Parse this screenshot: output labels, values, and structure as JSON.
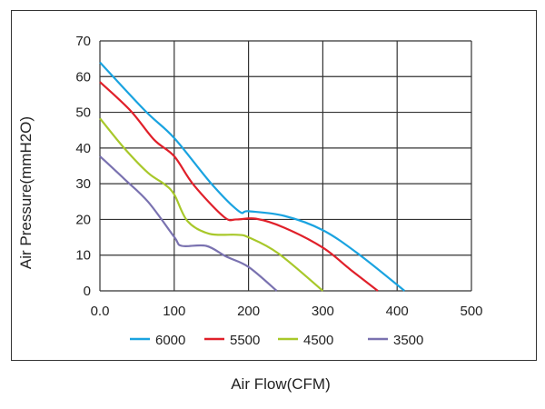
{
  "chart_data": {
    "type": "line",
    "title": "",
    "xlabel": "Air Flow(CFM)",
    "ylabel": "Air Pressure(mmH2O)",
    "xlim": [
      0,
      500
    ],
    "ylim": [
      0,
      70
    ],
    "xticks": [
      "0.0",
      "100",
      "200",
      "300",
      "400",
      "500"
    ],
    "yticks": [
      "0",
      "10",
      "20",
      "30",
      "40",
      "50",
      "60",
      "70"
    ],
    "grid": true,
    "legend_position": "bottom",
    "series": [
      {
        "name": "6000",
        "color": "#1aa3e0",
        "points": [
          [
            0,
            64
          ],
          [
            61,
            50.4
          ],
          [
            100,
            42.8
          ],
          [
            150,
            30
          ],
          [
            187,
            22.3
          ],
          [
            200,
            22.3
          ],
          [
            248,
            21
          ],
          [
            300,
            17
          ],
          [
            350,
            10
          ],
          [
            410,
            0
          ]
        ]
      },
      {
        "name": "5500",
        "color": "#e0202a",
        "points": [
          [
            0,
            58.5
          ],
          [
            41,
            50.5
          ],
          [
            73,
            42.3
          ],
          [
            100,
            37.7
          ],
          [
            126,
            29.7
          ],
          [
            167,
            20.7
          ],
          [
            184,
            20
          ],
          [
            210,
            20.2
          ],
          [
            248,
            17.7
          ],
          [
            300,
            12.1
          ],
          [
            338,
            5.8
          ],
          [
            374,
            0
          ]
        ]
      },
      {
        "name": "4500",
        "color": "#a8c82a",
        "points": [
          [
            0,
            48.3
          ],
          [
            33,
            39.9
          ],
          [
            65,
            33
          ],
          [
            86,
            30
          ],
          [
            100,
            27
          ],
          [
            118,
            19.5
          ],
          [
            147,
            16
          ],
          [
            184,
            15.7
          ],
          [
            200,
            15
          ],
          [
            240,
            10.5
          ],
          [
            300,
            0
          ]
        ]
      },
      {
        "name": "3500",
        "color": "#7a72b0",
        "points": [
          [
            0,
            37.7
          ],
          [
            33,
            31.3
          ],
          [
            65,
            24.9
          ],
          [
            100,
            15.1
          ],
          [
            110,
            12.6
          ],
          [
            143,
            12.6
          ],
          [
            170,
            9.6
          ],
          [
            200,
            6.7
          ],
          [
            238,
            0
          ]
        ]
      }
    ]
  }
}
